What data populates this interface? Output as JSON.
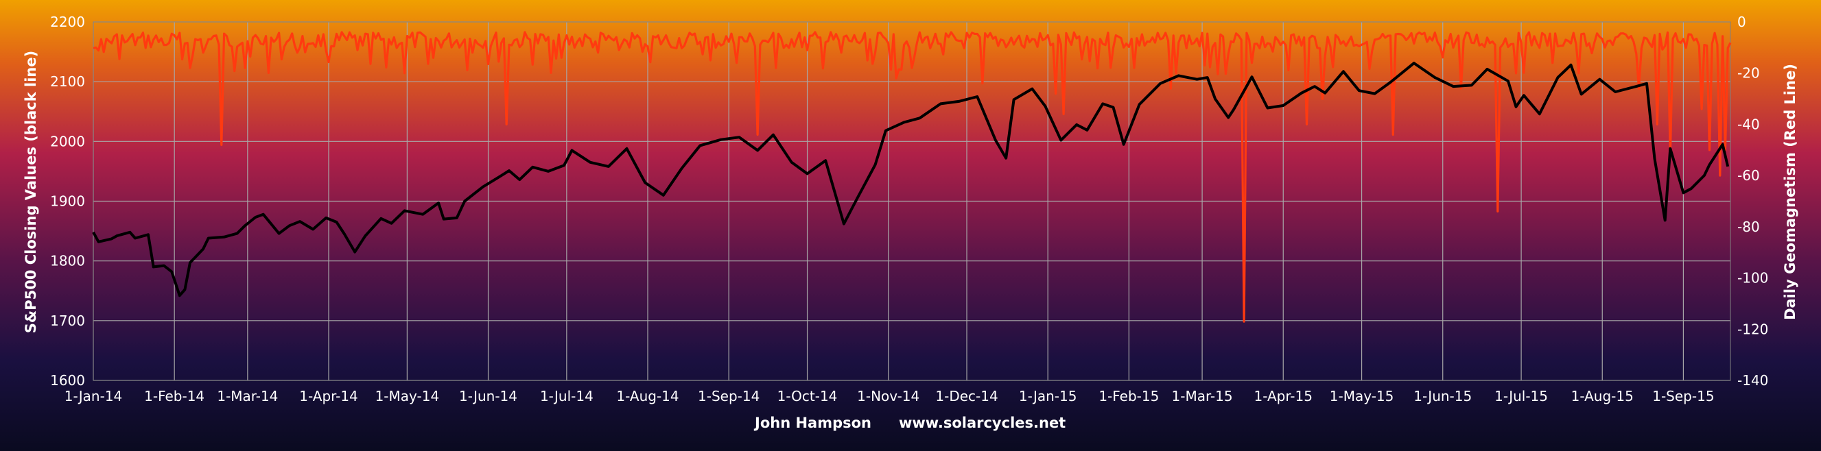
{
  "chart_data": {
    "type": "line",
    "xlabel_tokens": [
      "John Hampson",
      "www.solarcycles.net"
    ],
    "x_ticks": [
      "1-Jan-14",
      "1-Feb-14",
      "1-Mar-14",
      "1-Apr-14",
      "1-May-14",
      "1-Jun-14",
      "1-Jul-14",
      "1-Aug-14",
      "1-Sep-14",
      "1-Oct-14",
      "1-Nov-14",
      "1-Dec-14",
      "1-Jan-15",
      "1-Feb-15",
      "1-Mar-15",
      "1-Apr-15",
      "1-May-15",
      "1-Jun-15",
      "1-Jul-15",
      "1-Aug-15",
      "1-Sep-15"
    ],
    "y_left": {
      "label": "S&P500 Closing Values (black line)",
      "lim": [
        1600,
        2200
      ],
      "ticks": [
        1600,
        1700,
        1800,
        1900,
        2000,
        2100,
        2200
      ]
    },
    "y_right": {
      "label": "Daily Geomagnetism (Red Line)",
      "lim": [
        -140,
        0
      ],
      "ticks": [
        0,
        -20,
        -40,
        -60,
        -80,
        -100,
        -120,
        -140
      ]
    },
    "grid": true,
    "series": [
      {
        "name": "S&P500 Closing Values",
        "axis": "left",
        "color": "#000000",
        "points": [
          [
            "2014-01-01",
            1848
          ],
          [
            "2014-01-03",
            1832
          ],
          [
            "2014-01-08",
            1837
          ],
          [
            "2014-01-10",
            1842
          ],
          [
            "2014-01-15",
            1848
          ],
          [
            "2014-01-17",
            1838
          ],
          [
            "2014-01-22",
            1844
          ],
          [
            "2014-01-24",
            1790
          ],
          [
            "2014-01-28",
            1792
          ],
          [
            "2014-01-31",
            1782
          ],
          [
            "2014-02-03",
            1742
          ],
          [
            "2014-02-05",
            1752
          ],
          [
            "2014-02-07",
            1797
          ],
          [
            "2014-02-12",
            1820
          ],
          [
            "2014-02-14",
            1838
          ],
          [
            "2014-02-20",
            1840
          ],
          [
            "2014-02-25",
            1846
          ],
          [
            "2014-02-28",
            1859
          ],
          [
            "2014-03-04",
            1873
          ],
          [
            "2014-03-07",
            1878
          ],
          [
            "2014-03-13",
            1846
          ],
          [
            "2014-03-17",
            1859
          ],
          [
            "2014-03-21",
            1866
          ],
          [
            "2014-03-26",
            1853
          ],
          [
            "2014-03-31",
            1872
          ],
          [
            "2014-04-04",
            1865
          ],
          [
            "2014-04-07",
            1845
          ],
          [
            "2014-04-11",
            1815
          ],
          [
            "2014-04-15",
            1842
          ],
          [
            "2014-04-21",
            1871
          ],
          [
            "2014-04-25",
            1863
          ],
          [
            "2014-04-30",
            1884
          ],
          [
            "2014-05-07",
            1878
          ],
          [
            "2014-05-13",
            1897
          ],
          [
            "2014-05-15",
            1870
          ],
          [
            "2014-05-20",
            1872
          ],
          [
            "2014-05-23",
            1900
          ],
          [
            "2014-05-30",
            1924
          ],
          [
            "2014-06-05",
            1940
          ],
          [
            "2014-06-09",
            1951
          ],
          [
            "2014-06-13",
            1936
          ],
          [
            "2014-06-18",
            1957
          ],
          [
            "2014-06-24",
            1950
          ],
          [
            "2014-06-30",
            1960
          ],
          [
            "2014-07-03",
            1985
          ],
          [
            "2014-07-10",
            1965
          ],
          [
            "2014-07-17",
            1958
          ],
          [
            "2014-07-24",
            1988
          ],
          [
            "2014-07-31",
            1931
          ],
          [
            "2014-08-07",
            1910
          ],
          [
            "2014-08-14",
            1955
          ],
          [
            "2014-08-21",
            1993
          ],
          [
            "2014-08-29",
            2003
          ],
          [
            "2014-09-05",
            2007
          ],
          [
            "2014-09-12",
            1985
          ],
          [
            "2014-09-18",
            2011
          ],
          [
            "2014-09-25",
            1965
          ],
          [
            "2014-10-01",
            1946
          ],
          [
            "2014-10-08",
            1968
          ],
          [
            "2014-10-15",
            1862
          ],
          [
            "2014-10-20",
            1904
          ],
          [
            "2014-10-27",
            1961
          ],
          [
            "2014-10-31",
            2018
          ],
          [
            "2014-11-07",
            2032
          ],
          [
            "2014-11-13",
            2039
          ],
          [
            "2014-11-21",
            2063
          ],
          [
            "2014-11-28",
            2067
          ],
          [
            "2014-12-05",
            2075
          ],
          [
            "2014-12-12",
            2002
          ],
          [
            "2014-12-16",
            1972
          ],
          [
            "2014-12-19",
            2070
          ],
          [
            "2014-12-26",
            2088
          ],
          [
            "2014-12-31",
            2059
          ],
          [
            "2015-01-06",
            2002
          ],
          [
            "2015-01-12",
            2028
          ],
          [
            "2015-01-16",
            2019
          ],
          [
            "2015-01-22",
            2063
          ],
          [
            "2015-01-26",
            2057
          ],
          [
            "2015-01-30",
            1995
          ],
          [
            "2015-02-05",
            2062
          ],
          [
            "2015-02-13",
            2097
          ],
          [
            "2015-02-20",
            2110
          ],
          [
            "2015-02-27",
            2104
          ],
          [
            "2015-03-03",
            2107
          ],
          [
            "2015-03-06",
            2071
          ],
          [
            "2015-03-11",
            2040
          ],
          [
            "2015-03-13",
            2053
          ],
          [
            "2015-03-20",
            2108
          ],
          [
            "2015-03-26",
            2056
          ],
          [
            "2015-04-01",
            2060
          ],
          [
            "2015-04-08",
            2081
          ],
          [
            "2015-04-13",
            2092
          ],
          [
            "2015-04-17",
            2081
          ],
          [
            "2015-04-24",
            2117
          ],
          [
            "2015-04-30",
            2085
          ],
          [
            "2015-05-06",
            2080
          ],
          [
            "2015-05-12",
            2099
          ],
          [
            "2015-05-21",
            2131
          ],
          [
            "2015-05-29",
            2107
          ],
          [
            "2015-06-05",
            2092
          ],
          [
            "2015-06-12",
            2094
          ],
          [
            "2015-06-18",
            2121
          ],
          [
            "2015-06-26",
            2101
          ],
          [
            "2015-06-29",
            2058
          ],
          [
            "2015-07-02",
            2077
          ],
          [
            "2015-07-08",
            2046
          ],
          [
            "2015-07-15",
            2107
          ],
          [
            "2015-07-20",
            2128
          ],
          [
            "2015-07-24",
            2079
          ],
          [
            "2015-07-31",
            2104
          ],
          [
            "2015-08-06",
            2083
          ],
          [
            "2015-08-14",
            2092
          ],
          [
            "2015-08-18",
            2097
          ],
          [
            "2015-08-21",
            1971
          ],
          [
            "2015-08-25",
            1868
          ],
          [
            "2015-08-27",
            1988
          ],
          [
            "2015-09-01",
            1914
          ],
          [
            "2015-09-04",
            1921
          ],
          [
            "2015-09-09",
            1943
          ],
          [
            "2015-09-11",
            1961
          ],
          [
            "2015-09-16",
            1995
          ],
          [
            "2015-09-18",
            1958
          ]
        ]
      },
      {
        "name": "Daily Geomagnetism",
        "axis": "right",
        "color": "#ff3a10",
        "baseline": -4,
        "dips": [
          [
            "2014-01-02",
            -10
          ],
          [
            "2014-01-13",
            -8
          ],
          [
            "2014-01-28",
            -9
          ],
          [
            "2014-02-07",
            -18
          ],
          [
            "2014-02-12",
            -12
          ],
          [
            "2014-02-19",
            -48
          ],
          [
            "2014-02-28",
            -18
          ],
          [
            "2014-03-20",
            -12
          ],
          [
            "2014-04-12",
            -11
          ],
          [
            "2014-04-30",
            -20
          ],
          [
            "2014-05-11",
            -14
          ],
          [
            "2014-05-26",
            -12
          ],
          [
            "2014-06-08",
            -40
          ],
          [
            "2014-06-29",
            -14
          ],
          [
            "2014-07-13",
            -12
          ],
          [
            "2014-08-11",
            -10
          ],
          [
            "2014-08-25",
            -15
          ],
          [
            "2014-09-12",
            -44
          ],
          [
            "2014-09-19",
            -18
          ],
          [
            "2014-10-01",
            -11
          ],
          [
            "2014-10-14",
            -12
          ],
          [
            "2014-10-27",
            -12
          ],
          [
            "2014-11-04",
            -22
          ],
          [
            "2014-11-10",
            -18
          ],
          [
            "2014-12-07",
            -24
          ],
          [
            "2014-12-23",
            -10
          ],
          [
            "2015-01-04",
            -28
          ],
          [
            "2015-01-07",
            -36
          ],
          [
            "2015-02-03",
            -18
          ],
          [
            "2015-02-17",
            -26
          ],
          [
            "2015-03-02",
            -17
          ],
          [
            "2015-03-17",
            -117
          ],
          [
            "2015-04-10",
            -40
          ],
          [
            "2015-04-16",
            -30
          ],
          [
            "2015-05-13",
            -44
          ],
          [
            "2015-06-08",
            -26
          ],
          [
            "2015-06-22",
            -74
          ],
          [
            "2015-07-13",
            -16
          ],
          [
            "2015-07-23",
            -20
          ],
          [
            "2015-08-15",
            -26
          ],
          [
            "2015-08-22",
            -40
          ],
          [
            "2015-08-27",
            -52
          ],
          [
            "2015-09-08",
            -34
          ],
          [
            "2015-09-11",
            -50
          ],
          [
            "2015-09-15",
            -60
          ],
          [
            "2015-09-17",
            -50
          ]
        ]
      }
    ]
  }
}
